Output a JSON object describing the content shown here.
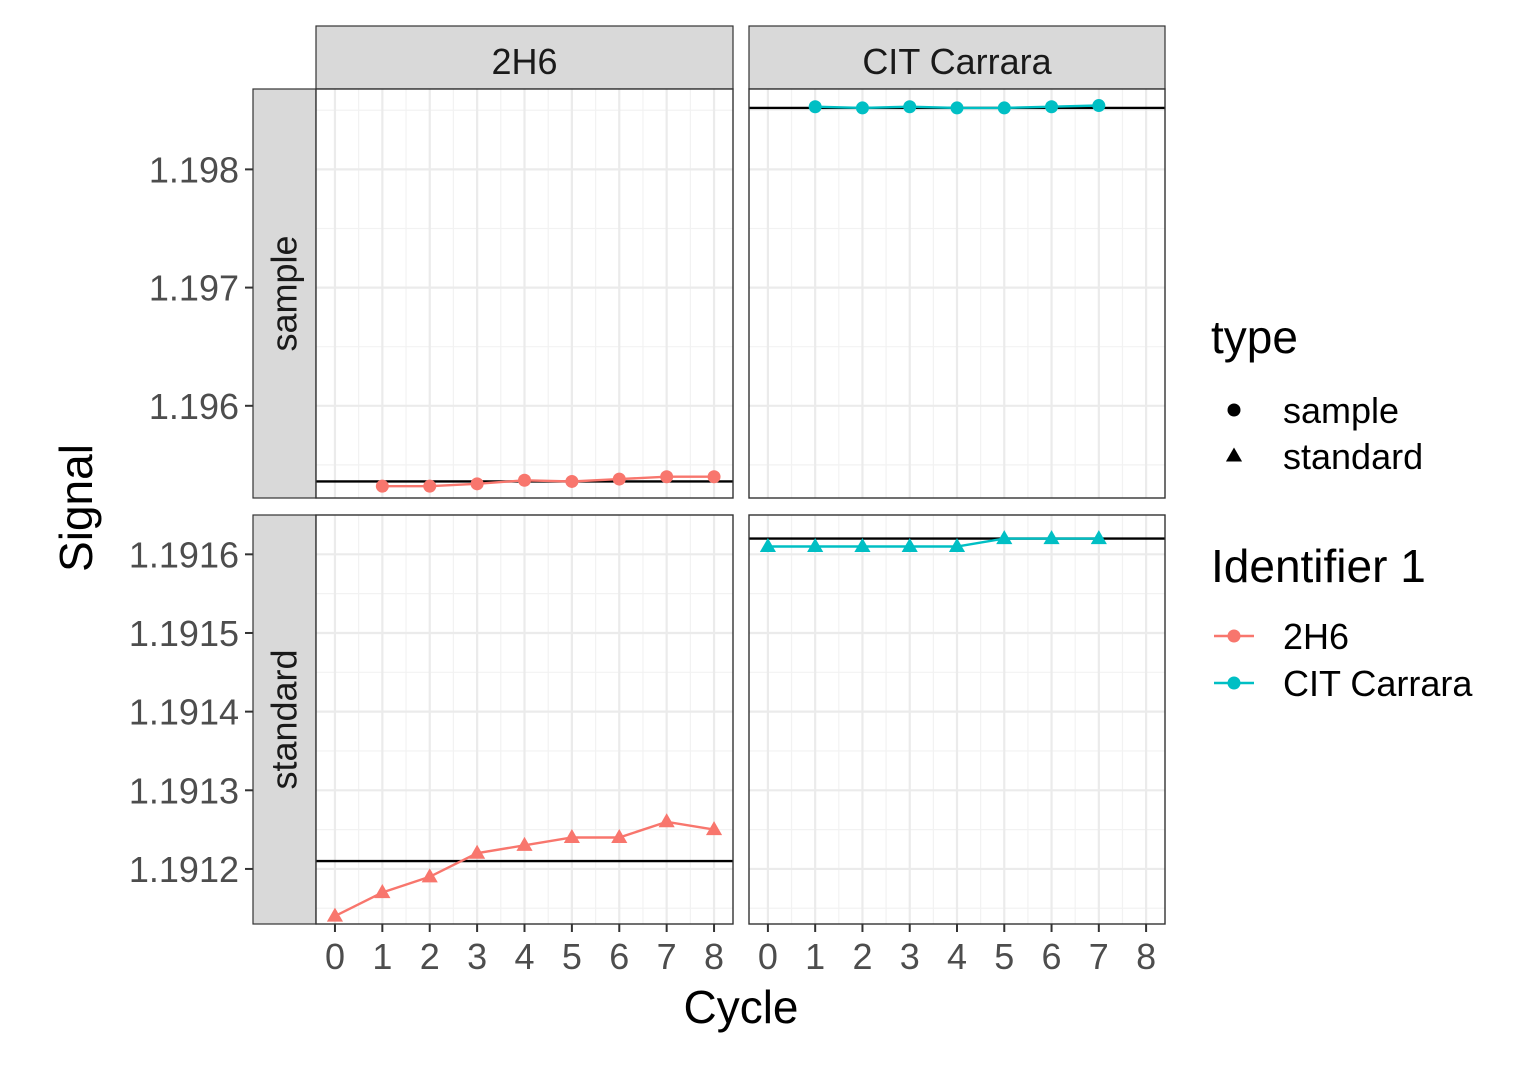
{
  "chart_data": {
    "type": "line",
    "facets": {
      "columns": [
        "2H6",
        "CIT Carrara"
      ],
      "rows": [
        "sample",
        "standard"
      ]
    },
    "xlabel": "Cycle",
    "ylabel": "Signal",
    "xlim": [
      -0.4,
      8.4
    ],
    "x_ticks": [
      0,
      1,
      2,
      3,
      4,
      5,
      6,
      7,
      8
    ],
    "x_tick_labels": [
      "0",
      "1",
      "2",
      "3",
      "4",
      "5",
      "6",
      "7",
      "8"
    ],
    "rows_scale": {
      "sample": {
        "ylim": [
          1.19522,
          1.19868
        ],
        "ticks": [
          1.196,
          1.197,
          1.198
        ],
        "tick_labels": [
          "1.196",
          "1.197",
          "1.198"
        ]
      },
      "standard": {
        "ylim": [
          1.19113,
          1.19165
        ],
        "ticks": [
          1.1912,
          1.1913,
          1.1914,
          1.1915,
          1.1916
        ],
        "tick_labels": [
          "1.1912",
          "1.1913",
          "1.1914",
          "1.1915",
          "1.1916"
        ]
      }
    },
    "panels": [
      {
        "column": "2H6",
        "row": "sample",
        "series": "2H6",
        "shape": "circle",
        "x": [
          1,
          2,
          3,
          4,
          5,
          6,
          7,
          8
        ],
        "y": [
          1.19532,
          1.19532,
          1.19534,
          1.19537,
          1.19536,
          1.19538,
          1.1954,
          1.1954
        ],
        "reference_line": 1.19536
      },
      {
        "column": "CIT Carrara",
        "row": "sample",
        "series": "CIT Carrara",
        "shape": "circle",
        "x": [
          1,
          2,
          3,
          4,
          5,
          6,
          7
        ],
        "y": [
          1.19853,
          1.19852,
          1.19853,
          1.19852,
          1.19852,
          1.19853,
          1.19854
        ],
        "reference_line": 1.19852
      },
      {
        "column": "2H6",
        "row": "standard",
        "series": "2H6",
        "shape": "triangle",
        "x": [
          0,
          1,
          2,
          3,
          4,
          5,
          6,
          7,
          8
        ],
        "y": [
          1.19114,
          1.19117,
          1.19119,
          1.19122,
          1.19123,
          1.19124,
          1.19124,
          1.19126,
          1.19125
        ],
        "reference_line": 1.19121
      },
      {
        "column": "CIT Carrara",
        "row": "standard",
        "series": "CIT Carrara",
        "shape": "triangle",
        "x": [
          0,
          1,
          2,
          3,
          4,
          5,
          6,
          7
        ],
        "y": [
          1.19161,
          1.19161,
          1.19161,
          1.19161,
          1.19161,
          1.19162,
          1.19162,
          1.19162
        ],
        "reference_line": 1.19162
      }
    ],
    "series_colors": {
      "2H6": "#F8766D",
      "CIT Carrara": "#00BFC4"
    },
    "legends": [
      {
        "title": "type",
        "entries": [
          {
            "label": "sample",
            "shape": "circle"
          },
          {
            "label": "standard",
            "shape": "triangle"
          }
        ]
      },
      {
        "title": "Identifier 1",
        "entries": [
          {
            "label": "2H6",
            "color": "#F8766D"
          },
          {
            "label": "CIT Carrara",
            "color": "#00BFC4"
          }
        ]
      }
    ],
    "legend_position": "right",
    "grid": true
  }
}
